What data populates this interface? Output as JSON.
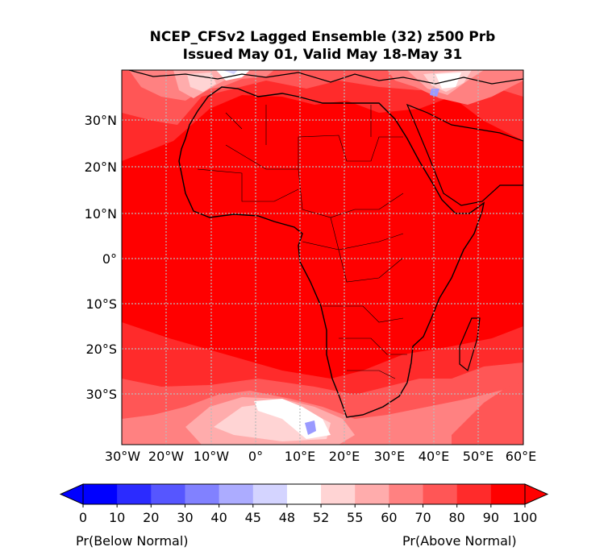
{
  "title": {
    "line1": "NCEP_CFSv2 Lagged Ensemble (32) z500 Prb",
    "line2": "Issued May 01, Valid May 18-May 31"
  },
  "map": {
    "region": "Africa",
    "lon_labels": [
      "30°W",
      "20°W",
      "10°W",
      "0°",
      "10°E",
      "20°E",
      "30°E",
      "40°E",
      "50°E",
      "60°E"
    ],
    "lat_labels": [
      "30°N",
      "20°N",
      "10°N",
      "0°",
      "10°S",
      "20°S",
      "30°S"
    ],
    "gridlines": true,
    "lon_range": [
      -30,
      60
    ],
    "lat_range": [
      -40,
      40
    ]
  },
  "colorbar": {
    "ticks": [
      "0",
      "10",
      "20",
      "30",
      "40",
      "45",
      "48",
      "52",
      "55",
      "60",
      "70",
      "80",
      "90",
      "100"
    ],
    "colors": [
      "#0000ff",
      "#2b2bff",
      "#5656ff",
      "#8181ff",
      "#acacff",
      "#d4d4ff",
      "#ffffff",
      "#ffd4d4",
      "#ffacac",
      "#ff8181",
      "#ff5656",
      "#ff2b2b",
      "#ff0000"
    ],
    "left_label": "Pr(Below Normal)",
    "right_label": "Pr(Above Normal)"
  }
}
